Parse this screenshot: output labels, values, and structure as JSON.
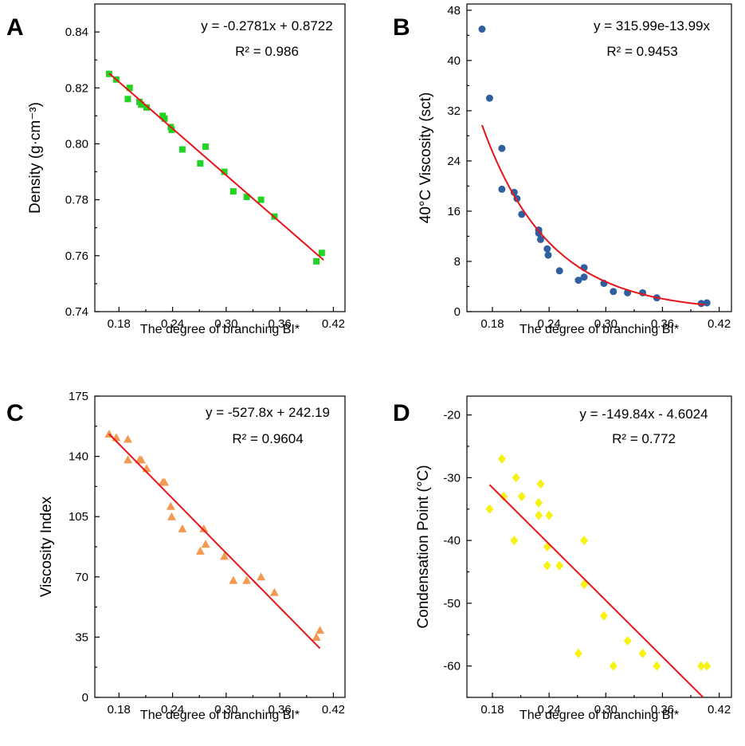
{
  "chart_data": [
    {
      "panel": "A",
      "type": "scatter",
      "xlabel": "The degree of branching BI*",
      "ylabel": "Density (g·cm⁻³)",
      "xticks": [
        "0.18",
        "0.24",
        "0.30",
        "0.36",
        "0.42"
      ],
      "yticks": [
        "0.74",
        "0.76",
        "0.78",
        "0.80",
        "0.82",
        "0.84"
      ],
      "xlim": [
        0.153,
        0.433
      ],
      "ylim": [
        0.74,
        0.85
      ],
      "equation": "y = -0.2781x + 0.8722",
      "r2": "R² = 0.986",
      "fit": {
        "kind": "linear",
        "slope": -0.2781,
        "intercept": 0.8722,
        "x_range": [
          0.169,
          0.409
        ]
      },
      "marker": "square",
      "color": "#22d422",
      "points": [
        [
          0.169,
          0.825
        ],
        [
          0.177,
          0.823
        ],
        [
          0.19,
          0.816
        ],
        [
          0.192,
          0.82
        ],
        [
          0.203,
          0.815
        ],
        [
          0.205,
          0.814
        ],
        [
          0.211,
          0.813
        ],
        [
          0.229,
          0.81
        ],
        [
          0.231,
          0.809
        ],
        [
          0.238,
          0.806
        ],
        [
          0.239,
          0.805
        ],
        [
          0.251,
          0.798
        ],
        [
          0.271,
          0.793
        ],
        [
          0.277,
          0.799
        ],
        [
          0.298,
          0.79
        ],
        [
          0.308,
          0.783
        ],
        [
          0.323,
          0.781
        ],
        [
          0.339,
          0.78
        ],
        [
          0.354,
          0.774
        ],
        [
          0.401,
          0.758
        ],
        [
          0.407,
          0.761
        ]
      ]
    },
    {
      "panel": "B",
      "type": "scatter",
      "xlabel": "The degree of branching BI*",
      "ylabel": "40°C Viscosity (sct)",
      "xticks": [
        "0.18",
        "0.24",
        "0.30",
        "0.36",
        "0.42"
      ],
      "yticks": [
        "0",
        "8",
        "16",
        "24",
        "32",
        "40",
        "48"
      ],
      "xlim": [
        0.153,
        0.433
      ],
      "ylim": [
        0,
        49
      ],
      "equation": "y = 315.99e-13.99x",
      "r2": "R² = 0.9453",
      "fit": {
        "kind": "exponential",
        "a": 315.99,
        "b": -13.99,
        "x_range": [
          0.169,
          0.405
        ]
      },
      "marker": "circle",
      "color": "#2f5f9e",
      "points": [
        [
          0.169,
          45.0
        ],
        [
          0.177,
          34.0
        ],
        [
          0.19,
          26.0
        ],
        [
          0.19,
          19.5
        ],
        [
          0.203,
          19.0
        ],
        [
          0.206,
          18.0
        ],
        [
          0.211,
          15.5
        ],
        [
          0.229,
          13.0
        ],
        [
          0.229,
          12.5
        ],
        [
          0.231,
          11.5
        ],
        [
          0.238,
          10.0
        ],
        [
          0.239,
          9.0
        ],
        [
          0.251,
          6.5
        ],
        [
          0.271,
          5.0
        ],
        [
          0.277,
          7.0
        ],
        [
          0.277,
          5.5
        ],
        [
          0.298,
          4.5
        ],
        [
          0.308,
          3.2
        ],
        [
          0.323,
          3.0
        ],
        [
          0.339,
          3.0
        ],
        [
          0.354,
          2.2
        ],
        [
          0.401,
          1.3
        ],
        [
          0.407,
          1.4
        ]
      ]
    },
    {
      "panel": "C",
      "type": "scatter",
      "xlabel": "The degree of branching BI*",
      "ylabel": "Viscosity Index",
      "xticks": [
        "0.18",
        "0.24",
        "0.30",
        "0.36",
        "0.42"
      ],
      "yticks": [
        "0",
        "35",
        "70",
        "105",
        "140",
        "175"
      ],
      "xlim": [
        0.153,
        0.433
      ],
      "ylim": [
        0,
        175
      ],
      "equation": "y = -527.8x + 242.19",
      "r2": "R² = 0.9604",
      "fit": {
        "kind": "linear",
        "slope": -527.8,
        "intercept": 242.19,
        "x_range": [
          0.169,
          0.405
        ]
      },
      "marker": "triangle",
      "color": "#f39a52",
      "points": [
        [
          0.169,
          153
        ],
        [
          0.177,
          151
        ],
        [
          0.19,
          150
        ],
        [
          0.19,
          138
        ],
        [
          0.203,
          138
        ],
        [
          0.205,
          138
        ],
        [
          0.211,
          133
        ],
        [
          0.229,
          125
        ],
        [
          0.231,
          125
        ],
        [
          0.238,
          111
        ],
        [
          0.239,
          105
        ],
        [
          0.251,
          98
        ],
        [
          0.271,
          85
        ],
        [
          0.275,
          98
        ],
        [
          0.277,
          89
        ],
        [
          0.298,
          82
        ],
        [
          0.308,
          68
        ],
        [
          0.323,
          68
        ],
        [
          0.339,
          70
        ],
        [
          0.354,
          61
        ],
        [
          0.401,
          35
        ],
        [
          0.405,
          39
        ]
      ]
    },
    {
      "panel": "D",
      "type": "scatter",
      "xlabel": "The degree of branching BI*",
      "ylabel": "Condensation Point (°C)",
      "xticks": [
        "0.18",
        "0.24",
        "0.30",
        "0.36",
        "0.42"
      ],
      "yticks": [
        "-60",
        "-50",
        "-40",
        "-30",
        "-20"
      ],
      "xlim": [
        0.153,
        0.433
      ],
      "ylim": [
        -65,
        -17
      ],
      "equation": "y = -149.84x - 4.6024",
      "r2": "R² = 0.772",
      "fit": {
        "kind": "linear",
        "slope": -149.84,
        "intercept": -4.6024,
        "x_range": [
          0.177,
          0.403
        ]
      },
      "marker": "diamond",
      "color": "#f5f214",
      "points": [
        [
          0.177,
          -35
        ],
        [
          0.19,
          -27
        ],
        [
          0.192,
          -33
        ],
        [
          0.203,
          -40
        ],
        [
          0.205,
          -30
        ],
        [
          0.211,
          -33
        ],
        [
          0.229,
          -34
        ],
        [
          0.229,
          -36
        ],
        [
          0.231,
          -31
        ],
        [
          0.238,
          -41
        ],
        [
          0.238,
          -44
        ],
        [
          0.24,
          -36
        ],
        [
          0.251,
          -44
        ],
        [
          0.271,
          -58
        ],
        [
          0.277,
          -40
        ],
        [
          0.277,
          -47
        ],
        [
          0.298,
          -52
        ],
        [
          0.308,
          -60
        ],
        [
          0.323,
          -56
        ],
        [
          0.339,
          -58
        ],
        [
          0.354,
          -60
        ],
        [
          0.401,
          -60
        ],
        [
          0.407,
          -60
        ]
      ]
    }
  ]
}
